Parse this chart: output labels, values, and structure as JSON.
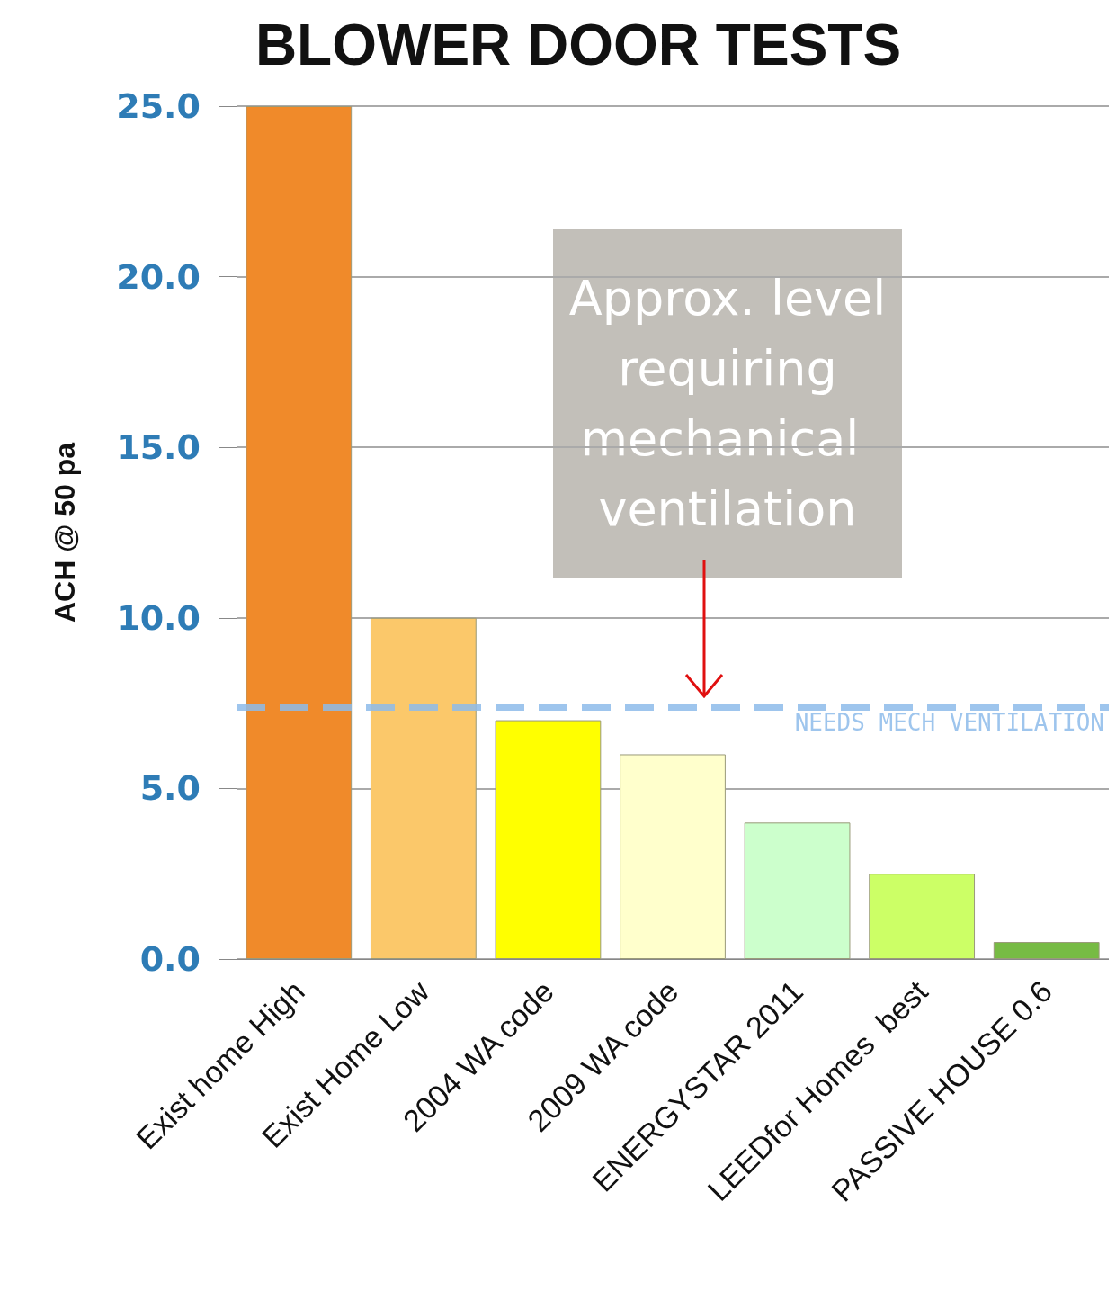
{
  "chart_data": {
    "type": "bar",
    "title": "BLOWER DOOR TESTS",
    "ylabel": "ACH @ 50 pa",
    "categories": [
      "Exist home High",
      "Exist Home Low",
      "2004 WA code",
      "2009 WA code",
      "ENERGYSTAR 2011",
      "LEEDfor Homes  best",
      "PASSIVE HOUSE 0.6"
    ],
    "values": [
      25,
      10,
      7,
      6,
      4,
      2.5,
      0.5
    ],
    "colors": [
      "#f08a2a",
      "#fbc86a",
      "#ffff00",
      "#ffffcc",
      "#ccffcc",
      "#ccff66",
      "#77bb44"
    ],
    "ylim": [
      0,
      25
    ],
    "yticks": [
      {
        "value": 0,
        "label": "0.0"
      },
      {
        "value": 5,
        "label": "5.0"
      },
      {
        "value": 10,
        "label": "10.0"
      },
      {
        "value": 15,
        "label": "15.0"
      },
      {
        "value": 20,
        "label": "20.0"
      },
      {
        "value": 25,
        "label": "25.0"
      }
    ],
    "grid": "y",
    "ref_lines": [
      {
        "axis": "y",
        "value": 7.4,
        "label": "NEEDS MECH VENTILATION",
        "color": "#8dbbea",
        "line_style": "dashed"
      }
    ],
    "annotations": [
      "Approx. level requiring mechanical ventilation"
    ]
  }
}
